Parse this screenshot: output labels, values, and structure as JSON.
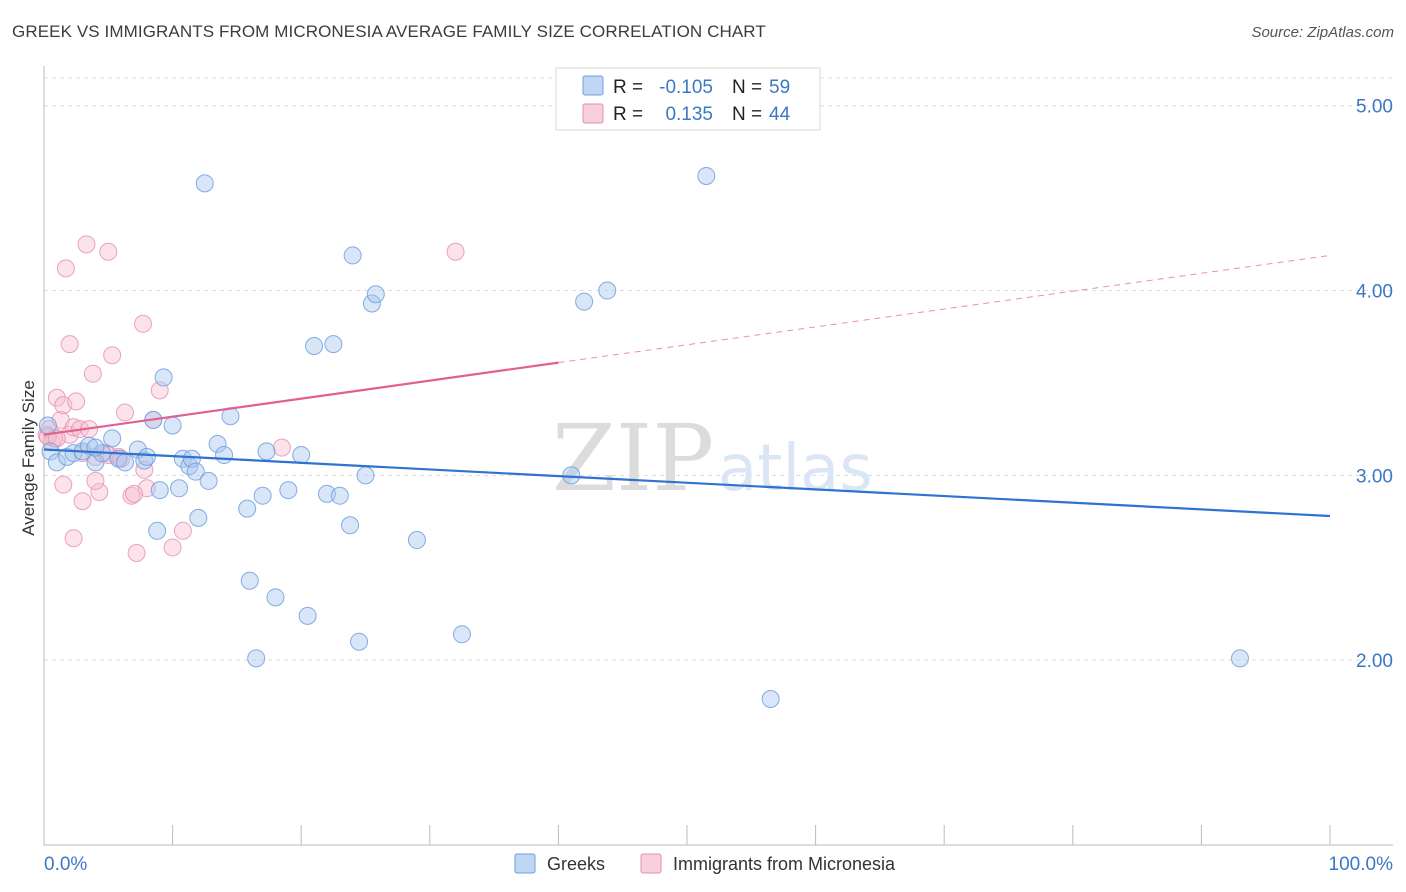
{
  "title": "GREEK VS IMMIGRANTS FROM MICRONESIA AVERAGE FAMILY SIZE CORRELATION CHART",
  "source": "Source: ZipAtlas.com",
  "watermark": {
    "zip": "ZIP",
    "atlas": "atlas"
  },
  "legend": {
    "r_label": "R =",
    "n_label": "N =",
    "rows": [
      {
        "r": "-0.105",
        "n": "59"
      },
      {
        "r": "0.135",
        "n": "44"
      }
    ]
  },
  "colors": {
    "greek_fill": "#a9c8f0",
    "greek_stroke": "#6fa0dc",
    "greek_line": "#2f72d0",
    "micro_fill": "#f6bfd3",
    "micro_stroke": "#e58fae",
    "micro_line": "#e0608e",
    "grid": "#dddddd",
    "tick_text": "#3b78c4"
  },
  "chart_data": {
    "type": "scatter",
    "title": "GREEK VS IMMIGRANTS FROM MICRONESIA AVERAGE FAMILY SIZE CORRELATION CHART",
    "xlabel": "",
    "ylabel": "Average Family Size",
    "xlim": [
      0,
      100
    ],
    "ylim": [
      1.0,
      5.15
    ],
    "x_tick_labels": [
      {
        "value": 0,
        "label": "0.0%"
      },
      {
        "value": 100,
        "label": "100.0%"
      }
    ],
    "y_ticks": [
      {
        "value": 2.0,
        "label": "2.00"
      },
      {
        "value": 3.0,
        "label": "3.00"
      },
      {
        "value": 4.0,
        "label": "4.00"
      },
      {
        "value": 5.0,
        "label": "5.00"
      }
    ],
    "x_minor_ticks": [
      0,
      10,
      20,
      30,
      40,
      50,
      60,
      70,
      80,
      90,
      100
    ],
    "series": [
      {
        "name": "Greeks",
        "r": -0.105,
        "n": 59,
        "trend": {
          "x0": 0,
          "y0": 3.14,
          "x1": 100,
          "y1": 2.78
        },
        "points": [
          [
            0.3,
            3.27
          ],
          [
            0.5,
            3.13
          ],
          [
            1.0,
            3.07
          ],
          [
            1.8,
            3.1
          ],
          [
            2.3,
            3.12
          ],
          [
            3.0,
            3.13
          ],
          [
            3.5,
            3.16
          ],
          [
            4.0,
            3.07
          ],
          [
            4.5,
            3.12
          ],
          [
            5.3,
            3.2
          ],
          [
            5.8,
            3.09
          ],
          [
            6.3,
            3.07
          ],
          [
            7.3,
            3.14
          ],
          [
            7.8,
            3.08
          ],
          [
            8.5,
            3.3
          ],
          [
            8.8,
            2.7
          ],
          [
            9.3,
            3.53
          ],
          [
            9.0,
            2.92
          ],
          [
            10.0,
            3.27
          ],
          [
            10.5,
            2.93
          ],
          [
            10.8,
            3.09
          ],
          [
            11.3,
            3.05
          ],
          [
            11.5,
            3.09
          ],
          [
            11.8,
            3.02
          ],
          [
            12.5,
            4.58
          ],
          [
            12.8,
            2.97
          ],
          [
            13.5,
            3.17
          ],
          [
            12.0,
            2.77
          ],
          [
            14.0,
            3.11
          ],
          [
            14.5,
            3.32
          ],
          [
            15.8,
            2.82
          ],
          [
            16.0,
            2.43
          ],
          [
            16.5,
            2.01
          ],
          [
            17.0,
            2.89
          ],
          [
            17.3,
            3.13
          ],
          [
            18.0,
            2.34
          ],
          [
            19.0,
            2.92
          ],
          [
            20.0,
            3.11
          ],
          [
            20.5,
            2.24
          ],
          [
            21.0,
            3.7
          ],
          [
            22.0,
            2.9
          ],
          [
            22.5,
            3.71
          ],
          [
            23.0,
            2.89
          ],
          [
            23.8,
            2.73
          ],
          [
            24.0,
            4.19
          ],
          [
            24.5,
            2.1
          ],
          [
            25.0,
            3.0
          ],
          [
            25.5,
            3.93
          ],
          [
            25.8,
            3.98
          ],
          [
            29.0,
            2.65
          ],
          [
            32.5,
            2.14
          ],
          [
            41.0,
            3.0
          ],
          [
            42.0,
            3.94
          ],
          [
            43.8,
            4.0
          ],
          [
            51.5,
            4.62
          ],
          [
            56.5,
            1.79
          ],
          [
            93.0,
            2.01
          ],
          [
            4.0,
            3.15
          ],
          [
            8.0,
            3.1
          ]
        ]
      },
      {
        "name": "Immigrants from Micronesia",
        "r": 0.135,
        "n": 44,
        "trend": {
          "x0": 0,
          "y0": 3.22,
          "x1": 40,
          "y1": 3.61
        },
        "trend_dashed": {
          "x0": 40,
          "y0": 3.61,
          "x1": 100,
          "y1": 4.19
        },
        "points": [
          [
            0.2,
            3.22
          ],
          [
            0.4,
            3.25
          ],
          [
            0.6,
            3.18
          ],
          [
            0.8,
            3.2
          ],
          [
            1.0,
            3.42
          ],
          [
            1.3,
            3.3
          ],
          [
            1.5,
            3.38
          ],
          [
            1.7,
            4.12
          ],
          [
            2.0,
            3.71
          ],
          [
            2.0,
            3.22
          ],
          [
            2.3,
            3.26
          ],
          [
            2.5,
            3.4
          ],
          [
            2.8,
            3.25
          ],
          [
            3.0,
            2.86
          ],
          [
            3.3,
            4.25
          ],
          [
            3.5,
            3.25
          ],
          [
            3.8,
            3.55
          ],
          [
            4.0,
            3.1
          ],
          [
            4.3,
            2.91
          ],
          [
            4.8,
            3.12
          ],
          [
            5.0,
            4.21
          ],
          [
            5.3,
            3.65
          ],
          [
            5.8,
            3.1
          ],
          [
            6.3,
            3.34
          ],
          [
            6.8,
            2.89
          ],
          [
            7.2,
            2.58
          ],
          [
            7.7,
            3.82
          ],
          [
            8.0,
            2.93
          ],
          [
            8.5,
            3.3
          ],
          [
            9.0,
            3.46
          ],
          [
            10.0,
            2.61
          ],
          [
            10.8,
            2.7
          ],
          [
            1.5,
            2.95
          ],
          [
            2.3,
            2.66
          ],
          [
            3.0,
            3.12
          ],
          [
            4.0,
            2.97
          ],
          [
            5.0,
            3.11
          ],
          [
            6.0,
            3.09
          ],
          [
            7.0,
            2.9
          ],
          [
            7.8,
            3.03
          ],
          [
            18.5,
            3.15
          ],
          [
            32.0,
            4.21
          ],
          [
            0.3,
            3.21
          ],
          [
            1.0,
            3.2
          ]
        ]
      }
    ],
    "legend_position": "top-center"
  },
  "bottom_legend": [
    {
      "label": "Greeks"
    },
    {
      "label": "Immigrants from Micronesia"
    }
  ]
}
